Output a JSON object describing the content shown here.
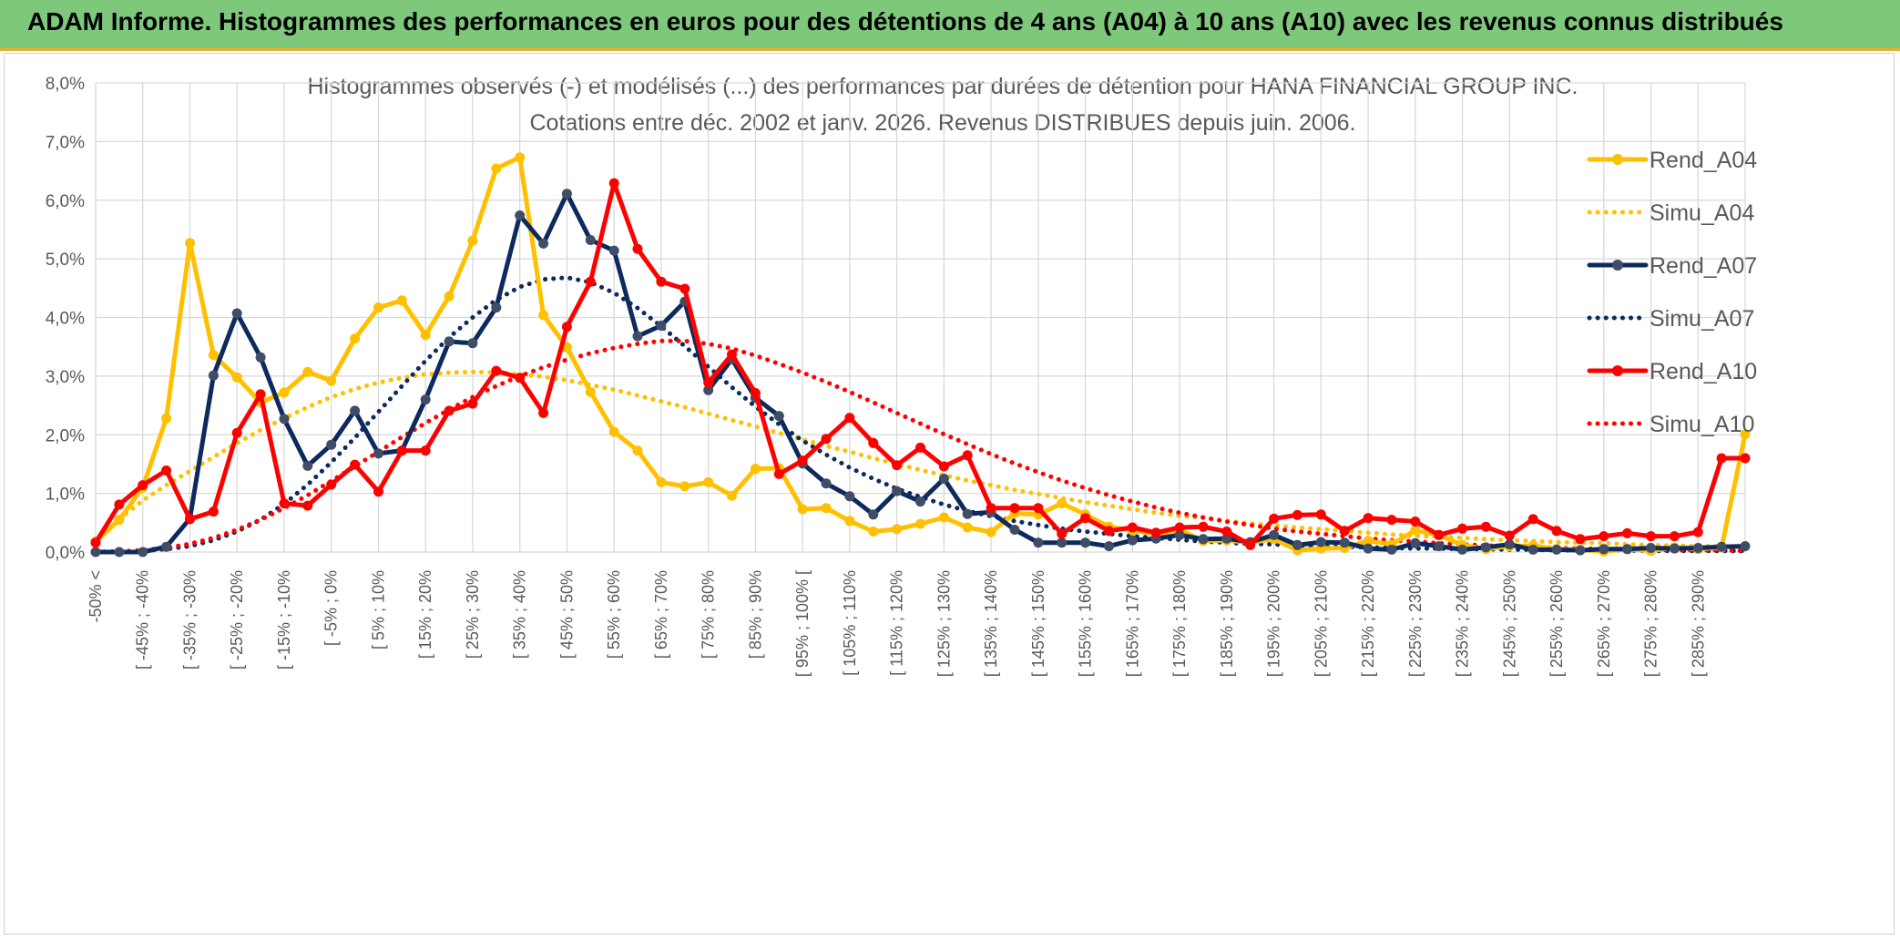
{
  "page": {
    "banner": "ADAM Informe. Histogrammes des performances en euros pour des détentions de 4 ans (A04) à 10 ans (A10) avec les revenus connus distribués"
  },
  "colors": {
    "banner_bg": "#7dc87a",
    "banner_border": "#e7b12a",
    "yellow": "#ffc000",
    "navy": "#0d2a5e",
    "red": "#ff0000",
    "grid": "#d9d9d9",
    "text": "#595959"
  },
  "chart_data": {
    "type": "line",
    "title": "Histogrammes observés (-) et modélisés (...) des performances par durées de détention pour HANA FINANCIAL GROUP INC.",
    "subtitle": "Cotations entre déc. 2002 et janv. 2026. Revenus DISTRIBUES depuis juin. 2006.",
    "xlabel": "",
    "ylabel": "",
    "ylim": [
      0,
      8
    ],
    "y_ticks": [
      "0,0%",
      "1,0%",
      "2,0%",
      "3,0%",
      "4,0%",
      "5,0%",
      "6,0%",
      "7,0%",
      "8,0%"
    ],
    "x_tick_labels": [
      "-50% <",
      "[ -45% ; -40%",
      "[ -35% ; -30%",
      "[ -25% ; -20%",
      "[ -15% ; -10%",
      "[ -5% ; 0%",
      "[ 5% ; 10%",
      "[ 15% ; 20%",
      "[ 25% ; 30%",
      "[ 35% ; 40%",
      "[ 45% ; 50%",
      "[ 55% ; 60%",
      "[ 65% ; 70%",
      "[ 75% ; 80%",
      "[ 85% ; 90%",
      "[ 95% ; 100% [",
      "[ 105% ; 110%",
      "[ 115% ; 120%",
      "[ 125% ; 130%",
      "[ 135% ; 140%",
      "[ 145% ; 150%",
      "[ 155% ; 160%",
      "[ 165% ; 170%",
      "[ 175% ; 180%",
      "[ 185% ; 190%",
      "[ 195% ; 200%",
      "[ 205% ; 210%",
      "[ 215% ; 220%",
      "[ 225% ; 230%",
      "[ 235% ; 240%",
      "[ 245% ; 250%",
      "[ 255% ; 260%",
      "[ 265% ; 270%",
      "[ 275% ; 280%",
      "[ 285% ; 290%"
    ],
    "categories_count": 71,
    "legend_position": "right",
    "series": [
      {
        "name": "Rend_A04",
        "style": "solid",
        "color": "#ffc000",
        "values": [
          0.18,
          0.55,
          1.1,
          2.28,
          5.27,
          3.36,
          2.98,
          2.55,
          2.72,
          3.07,
          2.92,
          3.64,
          4.17,
          4.29,
          3.7,
          4.36,
          5.31,
          6.54,
          6.73,
          4.04,
          3.49,
          2.73,
          2.05,
          1.73,
          1.19,
          1.12,
          1.19,
          0.96,
          1.42,
          1.43,
          0.73,
          0.75,
          0.53,
          0.35,
          0.39,
          0.48,
          0.59,
          0.42,
          0.34,
          0.66,
          0.64,
          0.83,
          0.64,
          0.43,
          0.37,
          0.3,
          0.38,
          0.19,
          0.2,
          0.16,
          0.22,
          0.03,
          0.06,
          0.07,
          0.19,
          0.13,
          0.37,
          0.29,
          0.12,
          0.05,
          0.1,
          0.11,
          0.05,
          0.04,
          0.01,
          0.05,
          0.02,
          0.08,
          0.05,
          0.08,
          2.01
        ]
      },
      {
        "name": "Simu_A04",
        "style": "dotted",
        "color": "#ffc000",
        "values": [
          0.18,
          0.56,
          0.88,
          1.14,
          1.38,
          1.62,
          1.86,
          2.08,
          2.28,
          2.47,
          2.64,
          2.78,
          2.89,
          2.97,
          3.03,
          3.06,
          3.07,
          3.06,
          3.03,
          2.99,
          2.93,
          2.85,
          2.77,
          2.67,
          2.57,
          2.47,
          2.36,
          2.25,
          2.14,
          2.03,
          1.92,
          1.81,
          1.71,
          1.6,
          1.5,
          1.4,
          1.31,
          1.22,
          1.14,
          1.06,
          0.99,
          0.92,
          0.85,
          0.79,
          0.73,
          0.67,
          0.62,
          0.58,
          0.53,
          0.49,
          0.45,
          0.42,
          0.39,
          0.36,
          0.33,
          0.3,
          0.28,
          0.26,
          0.24,
          0.22,
          0.2,
          0.19,
          0.17,
          0.16,
          0.15,
          0.13,
          0.12,
          0.11,
          0.1,
          0.1,
          0.09
        ]
      },
      {
        "name": "Rend_A07",
        "style": "solid",
        "color": "#0d2a5e",
        "values": [
          0.0,
          0.0,
          0.0,
          0.09,
          0.57,
          3.01,
          4.07,
          3.32,
          2.27,
          1.47,
          1.83,
          2.41,
          1.68,
          1.73,
          2.6,
          3.59,
          3.56,
          4.17,
          5.74,
          5.26,
          6.11,
          5.32,
          5.14,
          3.68,
          3.86,
          4.27,
          2.76,
          3.29,
          2.63,
          2.32,
          1.51,
          1.17,
          0.95,
          0.64,
          1.04,
          0.86,
          1.25,
          0.65,
          0.68,
          0.38,
          0.16,
          0.16,
          0.16,
          0.1,
          0.2,
          0.23,
          0.29,
          0.22,
          0.23,
          0.17,
          0.29,
          0.12,
          0.17,
          0.16,
          0.06,
          0.04,
          0.15,
          0.1,
          0.04,
          0.08,
          0.13,
          0.04,
          0.04,
          0.03,
          0.05,
          0.05,
          0.07,
          0.06,
          0.07,
          0.09,
          0.1
        ]
      },
      {
        "name": "Simu_A07",
        "style": "dotted",
        "color": "#0d2a5e",
        "values": [
          0.0,
          0.01,
          0.02,
          0.05,
          0.1,
          0.2,
          0.35,
          0.55,
          0.82,
          1.15,
          1.53,
          1.95,
          2.39,
          2.83,
          3.26,
          3.66,
          4.0,
          4.3,
          4.52,
          4.65,
          4.68,
          4.6,
          4.42,
          4.16,
          3.85,
          3.51,
          3.16,
          2.81,
          2.48,
          2.18,
          1.9,
          1.66,
          1.44,
          1.25,
          1.08,
          0.94,
          0.81,
          0.7,
          0.61,
          0.53,
          0.46,
          0.4,
          0.35,
          0.31,
          0.27,
          0.24,
          0.21,
          0.18,
          0.16,
          0.14,
          0.13,
          0.11,
          0.1,
          0.09,
          0.08,
          0.07,
          0.06,
          0.06,
          0.05,
          0.05,
          0.04,
          0.04,
          0.03,
          0.03,
          0.03,
          0.03,
          0.02,
          0.02,
          0.02,
          0.02,
          0.02
        ]
      },
      {
        "name": "Rend_A10",
        "style": "solid",
        "color": "#ff0000",
        "values": [
          0.16,
          0.81,
          1.14,
          1.39,
          0.56,
          0.69,
          2.03,
          2.69,
          0.83,
          0.79,
          1.15,
          1.49,
          1.03,
          1.73,
          1.73,
          2.41,
          2.53,
          3.09,
          2.97,
          2.37,
          3.84,
          4.61,
          6.29,
          5.17,
          4.61,
          4.49,
          2.89,
          3.37,
          2.71,
          1.33,
          1.56,
          1.93,
          2.29,
          1.86,
          1.48,
          1.78,
          1.46,
          1.65,
          0.75,
          0.75,
          0.75,
          0.31,
          0.58,
          0.36,
          0.42,
          0.33,
          0.42,
          0.43,
          0.35,
          0.12,
          0.57,
          0.63,
          0.64,
          0.36,
          0.58,
          0.55,
          0.52,
          0.29,
          0.4,
          0.43,
          0.28,
          0.56,
          0.36,
          0.22,
          0.27,
          0.32,
          0.27,
          0.27,
          0.34,
          1.6,
          1.6
        ]
      },
      {
        "name": "Simu_A10",
        "style": "dotted",
        "color": "#ff0000",
        "values": [
          0.0,
          0.01,
          0.03,
          0.07,
          0.14,
          0.24,
          0.38,
          0.55,
          0.75,
          0.97,
          1.21,
          1.46,
          1.71,
          1.96,
          2.2,
          2.43,
          2.64,
          2.83,
          3.0,
          3.15,
          3.28,
          3.39,
          3.48,
          3.55,
          3.6,
          3.6,
          3.55,
          3.47,
          3.35,
          3.21,
          3.06,
          2.9,
          2.73,
          2.55,
          2.37,
          2.19,
          2.01,
          1.84,
          1.67,
          1.51,
          1.36,
          1.22,
          1.09,
          0.97,
          0.86,
          0.76,
          0.67,
          0.59,
          0.52,
          0.46,
          0.4,
          0.35,
          0.31,
          0.27,
          0.23,
          0.2,
          0.18,
          0.15,
          0.13,
          0.11,
          0.1,
          0.09,
          0.07,
          0.06,
          0.05,
          0.05,
          0.04,
          0.03,
          0.03,
          0.03,
          0.02
        ]
      }
    ]
  }
}
